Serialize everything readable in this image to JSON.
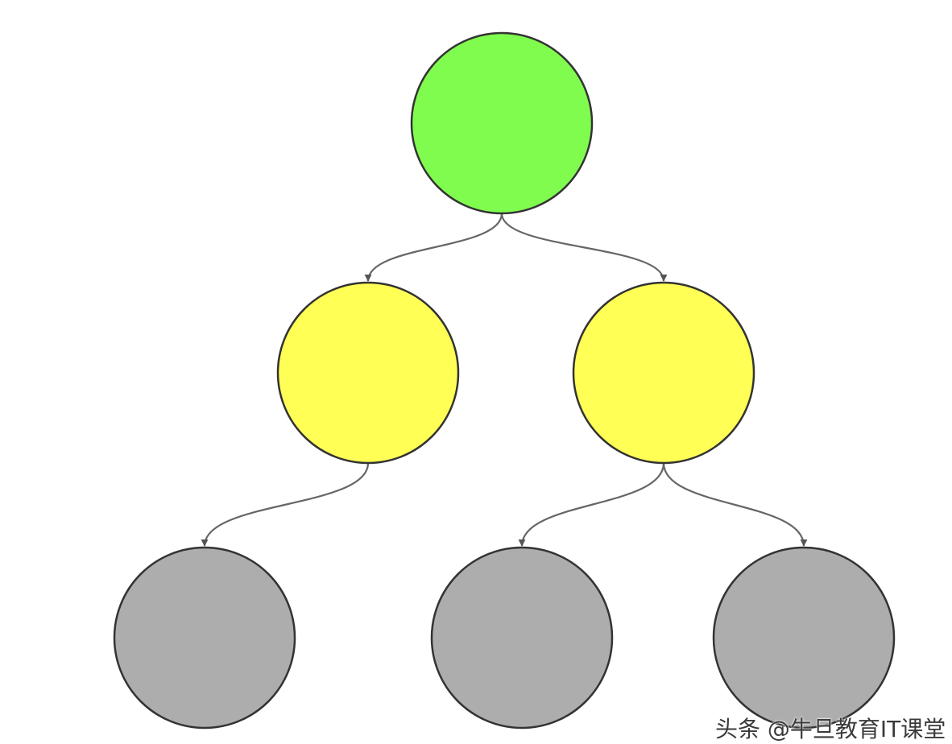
{
  "diagram": {
    "type": "tree",
    "stroke_color": "#333333",
    "edge_color": "#666666",
    "nodes": [
      {
        "id": "root",
        "fill": "#80fc4f",
        "level": 0
      },
      {
        "id": "left-child",
        "fill": "#ffff55",
        "level": 1
      },
      {
        "id": "right-child",
        "fill": "#ffff55",
        "level": 1
      },
      {
        "id": "left-leaf",
        "fill": "#adadad",
        "level": 2
      },
      {
        "id": "middle-leaf",
        "fill": "#adadad",
        "level": 2
      },
      {
        "id": "right-leaf",
        "fill": "#adadad",
        "level": 2
      }
    ],
    "edges": [
      {
        "from": "root",
        "to": "left-child"
      },
      {
        "from": "root",
        "to": "right-child"
      },
      {
        "from": "left-child",
        "to": "left-leaf"
      },
      {
        "from": "right-child",
        "to": "middle-leaf"
      },
      {
        "from": "right-child",
        "to": "right-leaf"
      }
    ]
  },
  "watermark": {
    "text": "头条 @牛旦教育IT课堂"
  }
}
